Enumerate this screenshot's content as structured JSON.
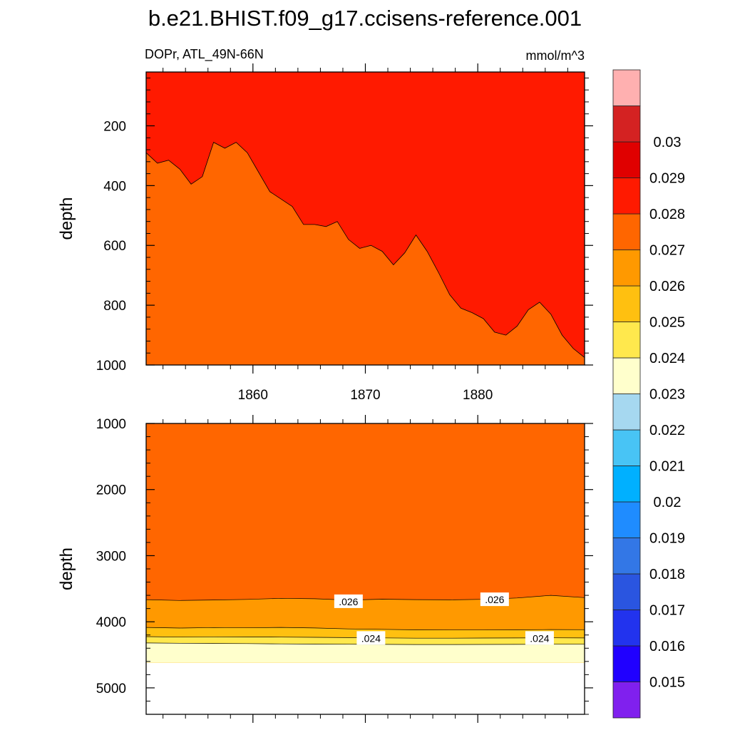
{
  "chart_data": {
    "type": "contour",
    "title": "b.e21.BHIST.f09_g17.ccisens-reference.001",
    "left_string": "DOPr, ATL_49N-66N",
    "right_string": "mmol/m^3",
    "colors": {
      "c0_026_0_027": "#ff6600",
      "c0_027_0_028": "#ff1a00",
      "c0_025_0_026": "#ff9900",
      "c0_024_0_025": "#ffc010",
      "c0_023_0_024": "#ffe84d",
      "c0_022_0_023": "#ffffcc",
      "missing": "#ffffff"
    },
    "colorbar": {
      "levels": [
        "0.015",
        "0.016",
        "0.017",
        "0.018",
        "0.019",
        "0.02",
        "0.021",
        "0.022",
        "0.023",
        "0.024",
        "0.025",
        "0.026",
        "0.027",
        "0.028",
        "0.029",
        "0.03"
      ],
      "colors": [
        "#8020ee",
        "#2000ff",
        "#2233ee",
        "#2a55e0",
        "#3377e6",
        "#1f8cff",
        "#00b0ff",
        "#48c4f5",
        "#a6d8f0",
        "#ffffcc",
        "#ffe84d",
        "#ffc010",
        "#ff9900",
        "#ff6600",
        "#ff1a00",
        "#e00000",
        "#d42222",
        "#ffb0b0"
      ]
    },
    "panels": [
      {
        "name": "upper",
        "ylabel": "depth",
        "ylim": [
          0,
          1000
        ],
        "ylim_display": [
          20,
          1000
        ],
        "yticks": [
          200,
          400,
          600,
          800,
          1000
        ],
        "xlim": [
          1850.5,
          1889.5
        ],
        "xticks": [
          1860,
          1870,
          1880
        ],
        "xtick_labels_shown": true,
        "background_level": "0.026-0.027",
        "boundary_0_027": {
          "x": [
            1850.5,
            1851.5,
            1852.5,
            1853.5,
            1854.5,
            1855.5,
            1856.5,
            1857.5,
            1858.5,
            1859.5,
            1860.5,
            1861.5,
            1862.5,
            1863.5,
            1864.5,
            1865.5,
            1866.5,
            1867.5,
            1868.5,
            1869.5,
            1870.5,
            1871.5,
            1872.5,
            1873.5,
            1874.5,
            1875.5,
            1876.5,
            1877.5,
            1878.5,
            1879.5,
            1880.5,
            1881.5,
            1882.5,
            1883.5,
            1884.5,
            1885.5,
            1886.5,
            1887.5,
            1888.5,
            1889.5
          ],
          "depth": [
            290,
            325,
            315,
            345,
            395,
            370,
            255,
            275,
            255,
            290,
            355,
            420,
            445,
            470,
            530,
            530,
            537,
            520,
            580,
            610,
            600,
            620,
            665,
            625,
            565,
            620,
            690,
            765,
            810,
            825,
            845,
            890,
            900,
            870,
            815,
            790,
            830,
            900,
            945,
            975
          ]
        }
      },
      {
        "name": "lower",
        "ylabel": "depth",
        "ylim": [
          1000,
          5400
        ],
        "yticks": [
          1000,
          2000,
          3000,
          4000,
          5000
        ],
        "xlim": [
          1850.5,
          1889.5
        ],
        "xticks": [
          1860,
          1870,
          1880
        ],
        "xtick_labels_shown": false,
        "missing_below_depth": 4620,
        "layers": [
          {
            "level": "0.026-0.027",
            "fill": "#ff6600"
          },
          {
            "level": "0.025-0.026",
            "fill": "#ff9900"
          },
          {
            "level": "0.024-0.025",
            "fill": "#ffc010"
          },
          {
            "level": "0.023-0.024",
            "fill": "#ffe84d"
          },
          {
            "level": "0.022-0.023",
            "fill": "#ffffcc"
          }
        ],
        "contours": [
          {
            "value": 0.026,
            "x": [
              1850.5,
              1853.5,
              1856.5,
              1859.5,
              1862.5,
              1865.5,
              1868.5,
              1871.5,
              1874.5,
              1877.5,
              1880.5,
              1883.5,
              1886.5,
              1889.5
            ],
            "depth": [
              3665,
              3678,
              3670,
              3662,
              3645,
              3652,
              3672,
              3658,
              3665,
              3668,
              3660,
              3640,
              3600,
              3635
            ]
          },
          {
            "value": 0.025,
            "x": [
              1850.5,
              1853.5,
              1856.5,
              1859.5,
              1862.5,
              1865.5,
              1868.5,
              1871.5,
              1874.5,
              1877.5,
              1880.5,
              1883.5,
              1886.5,
              1889.5
            ],
            "depth": [
              4085,
              4095,
              4088,
              4092,
              4085,
              4094,
              4108,
              4115,
              4122,
              4124,
              4124,
              4122,
              4118,
              4120
            ]
          },
          {
            "value": 0.024,
            "x": [
              1850.5,
              1853.5,
              1856.5,
              1859.5,
              1862.5,
              1865.5,
              1868.5,
              1871.5,
              1874.5,
              1877.5,
              1880.5,
              1883.5,
              1886.5,
              1889.5
            ],
            "depth": [
              4225,
              4232,
              4228,
              4230,
              4232,
              4235,
              4240,
              4244,
              4248,
              4248,
              4246,
              4245,
              4243,
              4245
            ]
          },
          {
            "value": 0.023,
            "x": [
              1850.5,
              1853.5,
              1856.5,
              1859.5,
              1862.5,
              1865.5,
              1868.5,
              1871.5,
              1874.5,
              1877.5,
              1880.5,
              1883.5,
              1886.5,
              1889.5
            ],
            "depth": [
              4320,
              4325,
              4328,
              4330,
              4335,
              4338,
              4340,
              4342,
              4344,
              4344,
              4343,
              4342,
              4340,
              4340
            ]
          }
        ],
        "contour_labels": [
          {
            "text": ".026",
            "x": 1868.5,
            "depth": 3695
          },
          {
            "text": ".026",
            "x": 1881.5,
            "depth": 3665
          },
          {
            "text": ".024",
            "x": 1870.5,
            "depth": 4250
          },
          {
            "text": ".024",
            "x": 1885.5,
            "depth": 4250
          }
        ]
      }
    ]
  }
}
